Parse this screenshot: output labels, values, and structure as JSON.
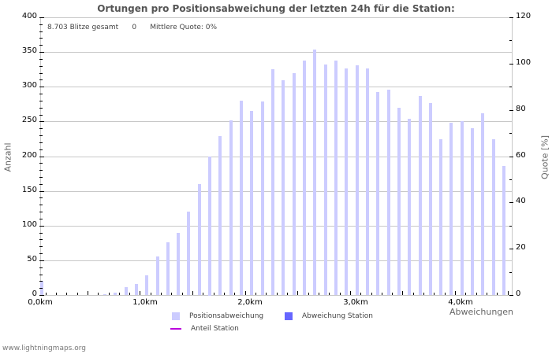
{
  "title": "Ortungen pro Positionsabweichung der letzten 24h für die Station:",
  "stats": {
    "total": "8.703 Blitze gesamt",
    "station_count": "0",
    "quote": "Mittlere Quote: 0%"
  },
  "axes": {
    "y_left_label": "Anzahl",
    "y_right_label": "Quote [%]",
    "x_label": "Abweichungen",
    "y_left_ticks": [
      "0",
      "50",
      "100",
      "150",
      "200",
      "250",
      "300",
      "350",
      "400"
    ],
    "y_right_ticks": [
      "0",
      "20",
      "40",
      "60",
      "80",
      "100",
      "120"
    ],
    "x_ticks": [
      "0,0km",
      "1,0km",
      "2,0km",
      "3,0km",
      "4,0km"
    ]
  },
  "legend": {
    "items": [
      {
        "label": "Positionsabweichung",
        "color": "#ccccff",
        "kind": "swatch"
      },
      {
        "label": "Abweichung Station",
        "color": "#6666ff",
        "kind": "swatch"
      },
      {
        "label": "Anteil Station",
        "color": "#bb00dd",
        "kind": "line"
      }
    ]
  },
  "footer": "www.lightningmaps.org",
  "colors": {
    "bar": "#ccccff",
    "grid": "#c8c8c8",
    "title": "#555555"
  },
  "chart_data": {
    "type": "bar",
    "title": "Ortungen pro Positionsabweichung der letzten 24h für die Station:",
    "xlabel": "Abweichungen",
    "ylabel": "Anzahl",
    "ylabel_right": "Quote [%]",
    "ylim": [
      0,
      400
    ],
    "ylim_right": [
      0,
      120
    ],
    "grid": true,
    "legend_position": "bottom",
    "x_unit": "km",
    "categories": [
      "0.0",
      "0.1",
      "0.2",
      "0.3",
      "0.4",
      "0.5",
      "0.6",
      "0.7",
      "0.8",
      "0.9",
      "1.0",
      "1.1",
      "1.2",
      "1.3",
      "1.4",
      "1.5",
      "1.6",
      "1.7",
      "1.8",
      "1.9",
      "2.0",
      "2.1",
      "2.2",
      "2.3",
      "2.4",
      "2.5",
      "2.6",
      "2.7",
      "2.8",
      "2.9",
      "3.0",
      "3.1",
      "3.2",
      "3.3",
      "3.4",
      "3.5",
      "3.6",
      "3.7",
      "3.8",
      "3.9",
      "4.0",
      "4.1",
      "4.2",
      "4.3",
      "4.4"
    ],
    "series": [
      {
        "name": "Positionsabweichung",
        "values": [
          20,
          0,
          0,
          0,
          0,
          0,
          1,
          3,
          11,
          16,
          28,
          56,
          76,
          90,
          120,
          160,
          200,
          229,
          251,
          280,
          265,
          279,
          325,
          309,
          319,
          338,
          354,
          332,
          338,
          326,
          331,
          326,
          292,
          296,
          270,
          254,
          287,
          276,
          224,
          248,
          250,
          240,
          262,
          224,
          186
        ]
      },
      {
        "name": "Abweichung Station",
        "values": [
          0,
          0,
          0,
          0,
          0,
          0,
          0,
          0,
          0,
          0,
          0,
          0,
          0,
          0,
          0,
          0,
          0,
          0,
          0,
          0,
          0,
          0,
          0,
          0,
          0,
          0,
          0,
          0,
          0,
          0,
          0,
          0,
          0,
          0,
          0,
          0,
          0,
          0,
          0,
          0,
          0,
          0,
          0,
          0,
          0
        ]
      },
      {
        "name": "Anteil Station",
        "axis": "right",
        "values": [
          0,
          0,
          0,
          0,
          0,
          0,
          0,
          0,
          0,
          0,
          0,
          0,
          0,
          0,
          0,
          0,
          0,
          0,
          0,
          0,
          0,
          0,
          0,
          0,
          0,
          0,
          0,
          0,
          0,
          0,
          0,
          0,
          0,
          0,
          0,
          0,
          0,
          0,
          0,
          0,
          0,
          0,
          0,
          0,
          0
        ]
      }
    ]
  }
}
